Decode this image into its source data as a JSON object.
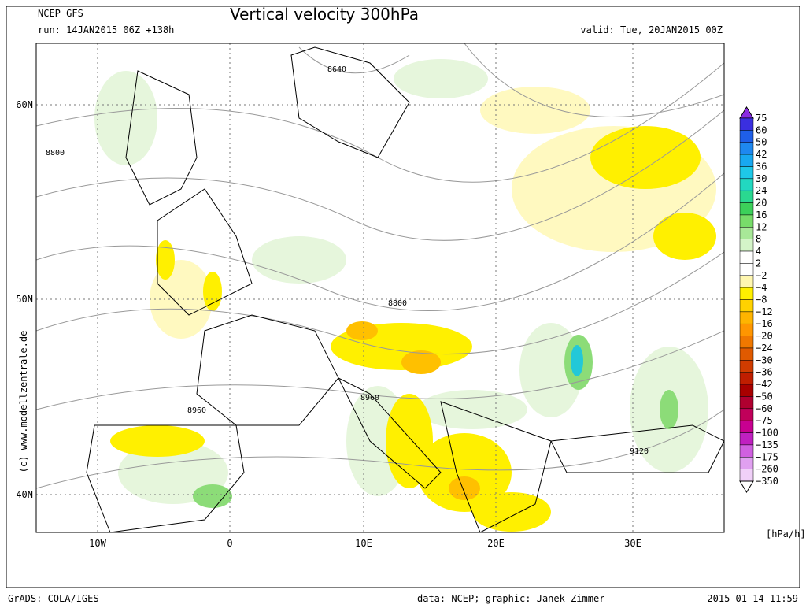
{
  "header": {
    "model": "NCEP GFS",
    "title": "Vertical velocity 300hPa",
    "run": "run: 14JAN2015 06Z +138h",
    "valid": "valid: Tue, 20JAN2015 00Z"
  },
  "map": {
    "lat_labels": [
      "60N",
      "50N",
      "40N"
    ],
    "lon_labels": [
      "10W",
      "0",
      "10E",
      "20E",
      "30E"
    ],
    "contour_labels": [
      "8640",
      "8800",
      "8800",
      "8960",
      "8960",
      "9120"
    ],
    "credit": "(c) www.modellzentrale.de"
  },
  "colorbar": {
    "labels": [
      "75",
      "60",
      "50",
      "42",
      "36",
      "30",
      "24",
      "20",
      "16",
      "12",
      "8",
      "4",
      "2",
      "−2",
      "−4",
      "−8",
      "−12",
      "−16",
      "−20",
      "−24",
      "−30",
      "−36",
      "−42",
      "−50",
      "−60",
      "−75",
      "−100",
      "−135",
      "−175",
      "−260",
      "−350"
    ],
    "colors": [
      "#8a2be2",
      "#3a2fe0",
      "#1f5fe8",
      "#1e88f0",
      "#18a8f0",
      "#1ec8e8",
      "#22d8c0",
      "#2ad890",
      "#3cd05a",
      "#78dc6a",
      "#a8e898",
      "#d4f4c8",
      "#ffffff",
      "#ffffff",
      "#fff7b0",
      "#fff000",
      "#ffd200",
      "#ffb400",
      "#ff9600",
      "#f07800",
      "#e05a00",
      "#d03c00",
      "#c01e00",
      "#a80000",
      "#b00030",
      "#c0005a",
      "#c80090",
      "#c020c0",
      "#d060e0",
      "#e0a0f0",
      "#f0d0f8",
      "#ffffff"
    ],
    "unit": "[hPa/h]"
  },
  "footer": {
    "left": "GrADS: COLA/IGES",
    "center": "data: NCEP; graphic: Janek Zimmer",
    "right": "2015-01-14-11:59"
  }
}
